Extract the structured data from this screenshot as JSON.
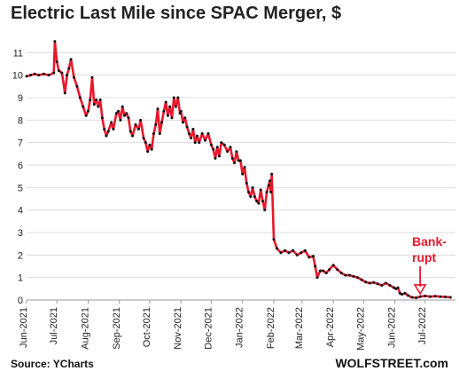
{
  "source": "Source: YCharts",
  "brand": "WOLFSTREET.com",
  "colors": {
    "line": "#e8182d",
    "markers": "#111111",
    "annotation": "#e8182d",
    "grid": "#dcdcdc"
  },
  "chart_data": {
    "type": "line",
    "title": "Electric Last Mile since SPAC Merger, $",
    "xlabel": "",
    "ylabel": "",
    "ylim": [
      0,
      12
    ],
    "yticks": [
      0,
      1,
      2,
      3,
      4,
      5,
      6,
      7,
      8,
      9,
      10,
      11
    ],
    "grid": "horizontal",
    "xticks": [
      "Jun-2021",
      "Jul-2021",
      "Aug-2021",
      "Sep-2021",
      "Oct-2021",
      "Nov-2021",
      "Dec-2021",
      "Jan-2022",
      "Feb-2022",
      "Mar-2022",
      "Apr-2022",
      "May-2022",
      "Jun-2022",
      "Jul-2022"
    ],
    "xtick_days": [
      0,
      30,
      61,
      92,
      122,
      153,
      183,
      214,
      245,
      273,
      304,
      334,
      365,
      395
    ],
    "x_range_days": [
      0,
      425
    ],
    "annotations": [
      {
        "text_lines": [
          "Bank-",
          "rupt"
        ],
        "date": "2022-06-26",
        "value": 0.12
      }
    ],
    "series": [
      {
        "x_days": [
          0,
          4,
          8,
          12,
          17,
          22,
          27,
          28,
          30,
          32,
          35,
          38,
          40,
          42,
          44,
          47,
          50,
          53,
          56,
          59,
          61,
          63,
          65,
          67,
          69,
          71,
          73,
          75,
          77,
          79,
          81,
          84,
          86,
          89,
          91,
          93,
          95,
          97,
          99,
          101,
          103,
          105,
          108,
          111,
          113,
          116,
          118,
          120,
          122,
          124,
          126,
          128,
          130,
          132,
          134,
          136,
          138,
          140,
          142,
          144,
          146,
          148,
          150,
          152,
          153,
          155,
          157,
          159,
          161,
          163,
          165,
          167,
          169,
          171,
          174,
          177,
          180,
          183,
          185,
          187,
          189,
          191,
          193,
          196,
          199,
          202,
          204,
          206,
          208,
          210,
          212,
          214,
          216,
          218,
          220,
          222,
          224,
          226,
          228,
          230,
          232,
          234,
          236,
          238,
          240,
          241,
          242,
          243,
          245,
          248,
          252,
          256,
          260,
          264,
          268,
          272,
          276,
          280,
          284,
          286,
          288,
          291,
          294,
          297,
          300,
          304,
          308,
          312,
          316,
          320,
          324,
          328,
          332,
          336,
          340,
          344,
          348,
          352,
          356,
          360,
          364,
          366,
          368,
          370,
          372,
          375,
          378,
          382,
          386,
          390,
          395,
          400,
          405,
          410,
          415,
          420
        ],
        "values": [
          9.95,
          10.0,
          10.05,
          10.0,
          10.05,
          10.0,
          10.1,
          11.5,
          10.6,
          10.2,
          10.1,
          9.2,
          10.0,
          10.3,
          10.7,
          9.9,
          9.5,
          9.0,
          8.6,
          8.2,
          8.4,
          8.9,
          9.9,
          8.7,
          8.9,
          8.6,
          8.9,
          8.1,
          7.6,
          7.3,
          7.5,
          7.9,
          7.6,
          8.3,
          8.4,
          8.0,
          8.6,
          8.2,
          8.3,
          8.1,
          7.5,
          7.3,
          7.8,
          7.6,
          8.0,
          7.2,
          7.0,
          6.6,
          6.9,
          6.7,
          7.4,
          7.8,
          8.5,
          7.4,
          7.9,
          8.4,
          8.8,
          8.2,
          8.6,
          8.1,
          9.0,
          8.6,
          9.0,
          8.3,
          8.4,
          7.9,
          8.1,
          7.7,
          7.4,
          7.2,
          7.6,
          7.0,
          7.3,
          7.0,
          7.4,
          7.1,
          7.4,
          6.9,
          6.7,
          6.3,
          6.8,
          6.4,
          7.0,
          6.9,
          6.6,
          6.8,
          6.3,
          6.1,
          6.6,
          6.2,
          6.2,
          5.6,
          5.9,
          5.2,
          4.8,
          4.6,
          5.0,
          4.6,
          4.4,
          4.3,
          4.9,
          4.4,
          4.0,
          4.8,
          5.1,
          5.3,
          4.8,
          5.6,
          2.7,
          2.3,
          2.1,
          2.2,
          2.1,
          2.2,
          2.0,
          2.1,
          2.2,
          1.9,
          1.95,
          1.5,
          1.0,
          1.3,
          1.3,
          1.2,
          1.35,
          1.55,
          1.35,
          1.2,
          1.1,
          1.1,
          1.05,
          1.0,
          0.9,
          0.8,
          0.75,
          0.78,
          0.72,
          0.65,
          0.75,
          0.65,
          0.55,
          0.5,
          0.55,
          0.3,
          0.25,
          0.3,
          0.2,
          0.12,
          0.1,
          0.15,
          0.18,
          0.15,
          0.17,
          0.15,
          0.14,
          0.12
        ]
      }
    ]
  }
}
